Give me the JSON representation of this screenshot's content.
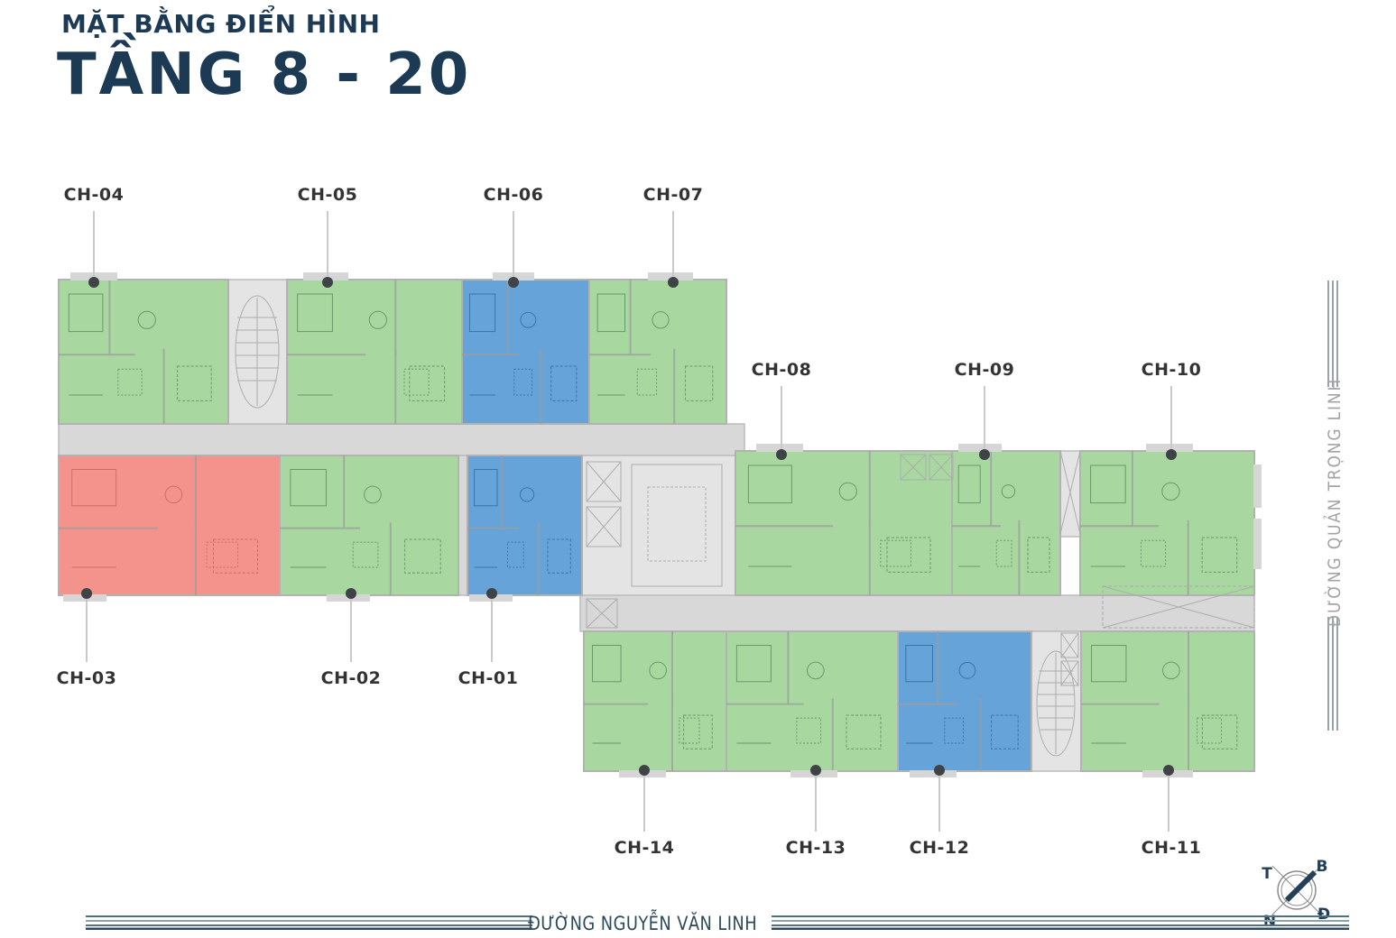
{
  "header": {
    "subtitle": "MẶT BẰNG ĐIỂN HÌNH",
    "title": "TẦNG 8 - 20"
  },
  "apartments": [
    {
      "label": "CH-01",
      "category": "blue"
    },
    {
      "label": "CH-02",
      "category": "green"
    },
    {
      "label": "CH-03",
      "category": "red"
    },
    {
      "label": "CH-04",
      "category": "green"
    },
    {
      "label": "CH-05",
      "category": "green"
    },
    {
      "label": "CH-06",
      "category": "blue"
    },
    {
      "label": "CH-07",
      "category": "green"
    },
    {
      "label": "CH-08",
      "category": "green"
    },
    {
      "label": "CH-09",
      "category": "green"
    },
    {
      "label": "CH-10",
      "category": "green"
    },
    {
      "label": "CH-11",
      "category": "green"
    },
    {
      "label": "CH-12",
      "category": "blue"
    },
    {
      "label": "CH-13",
      "category": "green"
    },
    {
      "label": "CH-14",
      "category": "green"
    }
  ],
  "streets": {
    "bottom": "ĐƯỜNG NGUYỄN VĂN LINH",
    "right": "ĐƯỜNG QUẢN TRỌNG LINH"
  },
  "compass": {
    "top_left": "T",
    "top_right": "B",
    "bottom_left": "N",
    "bottom_right": "Đ"
  },
  "colors": {
    "unit_green": "#a8d8a0",
    "unit_blue": "#66a3d9",
    "unit_red": "#f4938b",
    "furn_green": "#56855a",
    "furn_blue": "#2e6396",
    "furn_red": "#c2605b",
    "corridor": "#d8d8d8",
    "core": "#e4e4e4",
    "title_navy": "#1d3a55",
    "label_dark": "#333333"
  }
}
